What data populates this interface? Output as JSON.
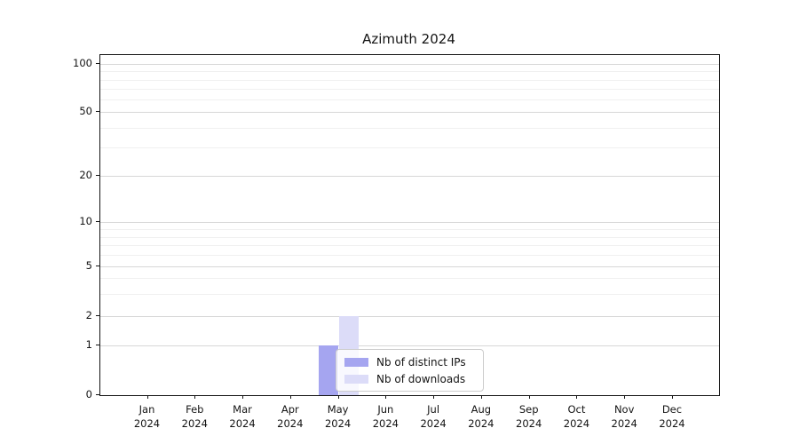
{
  "figure": {
    "title": "Azimuth 2024"
  },
  "chart_data": {
    "type": "bar",
    "title": "Azimuth 2024",
    "categories": [
      "Jan 2024",
      "Feb 2024",
      "Mar 2024",
      "Apr 2024",
      "May 2024",
      "Jun 2024",
      "Jul 2024",
      "Aug 2024",
      "Sep 2024",
      "Oct 2024",
      "Nov 2024",
      "Dec 2024"
    ],
    "series": [
      {
        "name": "Nb of distinct IPs",
        "color": "#a5a5f0",
        "values": [
          0,
          0,
          0,
          0,
          1,
          0,
          0,
          0,
          0,
          0,
          0,
          0
        ]
      },
      {
        "name": "Nb of downloads",
        "color": "#dcdcf8",
        "values": [
          0,
          0,
          0,
          0,
          2,
          0,
          0,
          0,
          0,
          0,
          0,
          0
        ]
      }
    ],
    "xlabel": "",
    "ylabel": "",
    "yscale": "log1p",
    "ylim": [
      0,
      110
    ],
    "ytick_labels": [
      "0",
      "1",
      "2",
      "5",
      "10",
      "20",
      "50",
      "100"
    ],
    "grid": true,
    "legend": {
      "position": "lower center"
    }
  }
}
